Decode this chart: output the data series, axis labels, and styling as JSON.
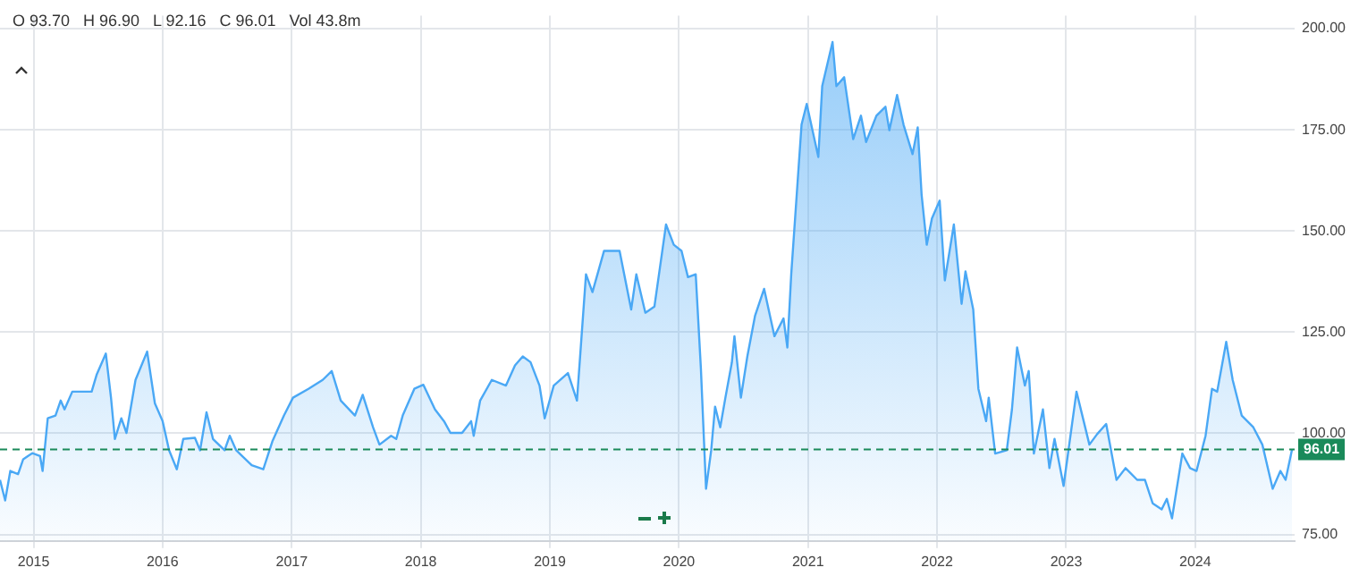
{
  "chart_data": {
    "type": "area",
    "annotations": [
      "O 93.70   H 96.90   L 92.16   C 96.01   Vol 43.8m"
    ],
    "x": [
      2014.74,
      2014.78,
      2014.82,
      2014.88,
      2014.92,
      2014.99,
      2015.05,
      2015.07,
      2015.11,
      2015.17,
      2015.21,
      2015.24,
      2015.3,
      2015.45,
      2015.49,
      2015.56,
      2015.6,
      2015.63,
      2015.68,
      2015.72,
      2015.79,
      2015.88,
      2015.94,
      2016.0,
      2016.05,
      2016.11,
      2016.16,
      2016.25,
      2016.29,
      2016.34,
      2016.39,
      2016.48,
      2016.52,
      2016.57,
      2016.69,
      2016.78,
      2016.85,
      2016.94,
      2017.01,
      2017.13,
      2017.24,
      2017.31,
      2017.38,
      2017.49,
      2017.55,
      2017.63,
      2017.68,
      2017.77,
      2017.81,
      2017.86,
      2017.95,
      2018.02,
      2018.11,
      2018.18,
      2018.23,
      2018.32,
      2018.39,
      2018.41,
      2018.46,
      2018.55,
      2018.66,
      2018.73,
      2018.79,
      2018.85,
      2018.92,
      2018.96,
      2019.03,
      2019.14,
      2019.21,
      2019.28,
      2019.33,
      2019.42,
      2019.54,
      2019.63,
      2019.67,
      2019.74,
      2019.81,
      2019.9,
      2019.96,
      2020.02,
      2020.07,
      2020.13,
      2020.17,
      2020.21,
      2020.25,
      2020.28,
      2020.32,
      2020.36,
      2020.41,
      2020.43,
      2020.48,
      2020.53,
      2020.59,
      2020.66,
      2020.74,
      2020.81,
      2020.84,
      2020.87,
      2020.95,
      2020.99,
      2021.08,
      2021.11,
      2021.19,
      2021.22,
      2021.28,
      2021.35,
      2021.41,
      2021.45,
      2021.53,
      2021.6,
      2021.63,
      2021.69,
      2021.74,
      2021.81,
      2021.85,
      2021.88,
      2021.92,
      2021.96,
      2022.02,
      2022.06,
      2022.13,
      2022.19,
      2022.22,
      2022.28,
      2022.32,
      2022.38,
      2022.4,
      2022.45,
      2022.54,
      2022.58,
      2022.62,
      2022.68,
      2022.71,
      2022.75,
      2022.82,
      2022.87,
      2022.91,
      2022.98,
      2023.08,
      2023.18,
      2023.24,
      2023.31,
      2023.39,
      2023.46,
      2023.55,
      2023.61,
      2023.67,
      2023.74,
      2023.78,
      2023.82,
      2023.9,
      2023.96,
      2024.01,
      2024.08,
      2024.13,
      2024.17,
      2024.24,
      2024.29,
      2024.36,
      2024.45,
      2024.52,
      2024.6,
      2024.66,
      2024.7,
      2024.75
    ],
    "series": [
      {
        "color": "#4aa8f5",
        "values": [
          88.5,
          83.4,
          90.7,
          89.9,
          93.6,
          95.1,
          94.4,
          90.7,
          103.7,
          104.4,
          108.1,
          105.9,
          110.3,
          110.3,
          114.6,
          119.7,
          108.8,
          98.6,
          103.7,
          100.1,
          113.2,
          120.2,
          107.4,
          103.0,
          95.8,
          91.1,
          98.6,
          98.9,
          95.8,
          105.2,
          98.6,
          95.8,
          99.4,
          95.8,
          92.1,
          91.1,
          98.0,
          104.4,
          108.8,
          111.0,
          113.2,
          115.4,
          108.1,
          104.4,
          109.5,
          101.5,
          97.2,
          99.4,
          98.6,
          104.4,
          111.0,
          112.0,
          105.9,
          103.0,
          100.1,
          100.1,
          103.0,
          99.4,
          108.1,
          113.2,
          111.8,
          116.8,
          119.0,
          117.6,
          111.8,
          103.7,
          111.8,
          114.9,
          108.1,
          139.3,
          134.9,
          145.1,
          145.1,
          130.6,
          139.3,
          129.8,
          131.3,
          151.6,
          146.6,
          145.1,
          138.6,
          139.3,
          116.1,
          86.3,
          95.8,
          106.6,
          101.5,
          108.8,
          117.5,
          124.0,
          108.8,
          119.0,
          129.1,
          135.7,
          124.0,
          128.4,
          121.2,
          139.3,
          176.3,
          181.4,
          168.3,
          185.8,
          196.7,
          185.8,
          188.0,
          172.7,
          178.5,
          172.0,
          178.5,
          180.7,
          174.9,
          183.6,
          176.3,
          169.0,
          175.6,
          159.0,
          146.6,
          153.1,
          157.5,
          137.8,
          151.6,
          132.0,
          140.0,
          130.6,
          111.0,
          103.0,
          108.8,
          95.0,
          95.8,
          105.9,
          121.2,
          111.8,
          115.4,
          95.0,
          105.9,
          91.4,
          98.6,
          87.0,
          110.3,
          97.2,
          99.8,
          102.3,
          88.5,
          91.4,
          88.5,
          88.5,
          82.7,
          81.2,
          83.8,
          79.0,
          95.0,
          91.4,
          90.7,
          99.4,
          111.0,
          110.3,
          122.6,
          113.2,
          104.4,
          101.5,
          97.2,
          86.3,
          90.7,
          88.5,
          96.01
        ]
      }
    ],
    "xlim": [
      2014.74,
      2024.77
    ],
    "xticks": [
      2015,
      2016,
      2017,
      2018,
      2019,
      2020,
      2021,
      2022,
      2023,
      2024
    ],
    "ylim": [
      73.4,
      203.2
    ],
    "yticks": [
      {
        "value": 75,
        "label": "75.00"
      },
      {
        "value": 100,
        "label": "100.00"
      },
      {
        "value": 125,
        "label": "125.00"
      },
      {
        "value": 150,
        "label": "150.00"
      },
      {
        "value": 175,
        "label": "175.00"
      },
      {
        "value": 200,
        "label": "200.00"
      }
    ],
    "ref_lines": [
      {
        "axis": "y",
        "value": 96.01,
        "label": "96.01",
        "color": "#1a8a5a",
        "line_style": "dashed"
      }
    ],
    "grid": true,
    "marker": "none",
    "line_style": "solid"
  }
}
